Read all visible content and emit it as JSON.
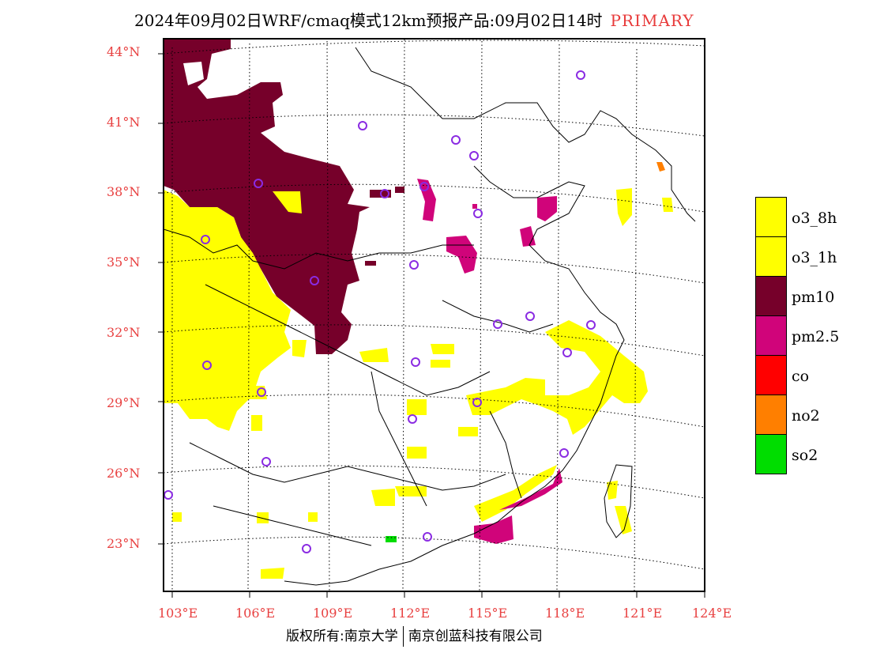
{
  "title": {
    "main": "2024年09月02日WRF/cmaq模式12km预报产品:09月02日14时",
    "tag": "PRIMARY"
  },
  "lat_labels": [
    "44°N",
    "41°N",
    "38°N",
    "35°N",
    "32°N",
    "29°N",
    "26°N",
    "23°N"
  ],
  "lon_labels": [
    "103°E",
    "106°E",
    "109°E",
    "112°E",
    "115°E",
    "118°E",
    "121°E",
    "124°E"
  ],
  "legend": [
    {
      "label": "o3_8h",
      "color": "#ffff00"
    },
    {
      "label": "o3_1h",
      "color": "#ffff00"
    },
    {
      "label": "pm10",
      "color": "#76002a"
    },
    {
      "label": "pm2.5",
      "color": "#d0047a"
    },
    {
      "label": "co",
      "color": "#ff0000"
    },
    {
      "label": "no2",
      "color": "#ff7f00"
    },
    {
      "label": "so2",
      "color": "#00dd00"
    }
  ],
  "footer": {
    "left": "版权所有:南京大学",
    "right": "南京创蓝科技有限公司"
  },
  "colors": {
    "label_red": "#e84040",
    "o3": "#ffff00",
    "pm10": "#76002a",
    "pm25": "#d0047a",
    "station": "#8a2be2"
  }
}
